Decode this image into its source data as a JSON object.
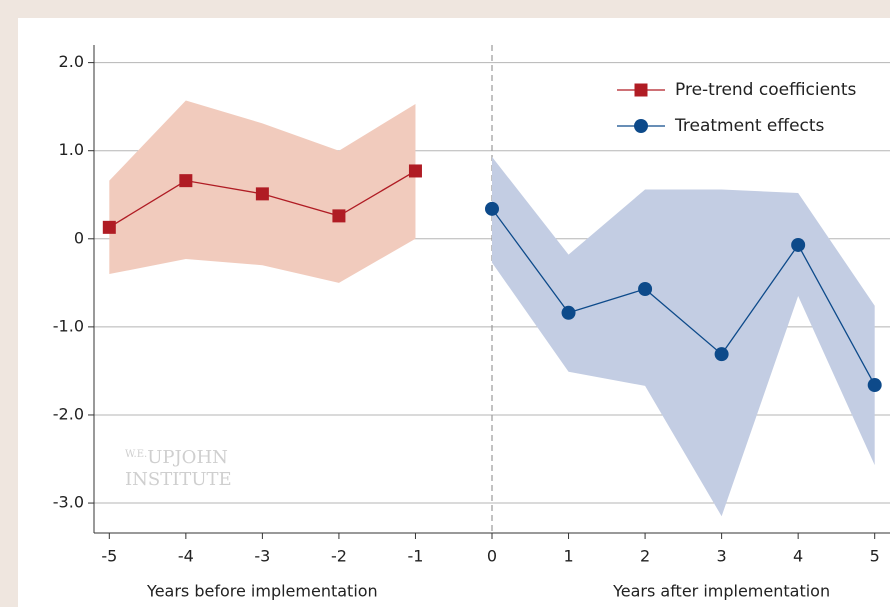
{
  "chart_data": {
    "type": "line",
    "xlabels": [
      "Years before implementation",
      "Years after implementation"
    ],
    "watermark": [
      "W.E.",
      "UPJOHN",
      "INSTITUTE"
    ],
    "series": [
      {
        "name": "Pre-trend coefficients",
        "color": "#b01c24",
        "band_color": "#f1cbbd",
        "marker": "square",
        "x": [
          -5,
          -4,
          -3,
          -2,
          -1
        ],
        "values": [
          0.13,
          0.66,
          0.51,
          0.26,
          0.77
        ],
        "upper": [
          0.66,
          1.57,
          1.31,
          1.0,
          1.53
        ],
        "lower": [
          -0.4,
          -0.23,
          -0.3,
          -0.5,
          0.0
        ]
      },
      {
        "name": "Treatment effects",
        "color": "#0d4a8a",
        "band_color": "#c3cde3",
        "marker": "circle",
        "x": [
          0,
          1,
          2,
          3,
          4,
          5
        ],
        "values": [
          0.34,
          -0.84,
          -0.57,
          -1.31,
          -0.07,
          -1.66
        ],
        "upper": [
          0.93,
          -0.18,
          0.56,
          0.56,
          0.52,
          -0.76
        ],
        "lower": [
          -0.27,
          -1.51,
          -1.67,
          -3.15,
          -0.65,
          -2.57
        ]
      }
    ],
    "vline": 0,
    "xlim": [
      -5.2,
      5.2
    ],
    "xticks": [
      -5,
      -4,
      -3,
      -2,
      -1,
      0,
      1,
      2,
      3,
      4,
      5
    ],
    "ylim": [
      -3.34,
      2.2
    ],
    "yticks": [
      {
        "value": -3,
        "label": "-3.0"
      },
      {
        "value": -2,
        "label": "-2.0"
      },
      {
        "value": -1,
        "label": "-1.0"
      },
      0,
      {
        "value": 1,
        "label": "1.0"
      },
      {
        "value": 2,
        "label": "2.0"
      }
    ],
    "grid": true,
    "legend": "upper right"
  }
}
